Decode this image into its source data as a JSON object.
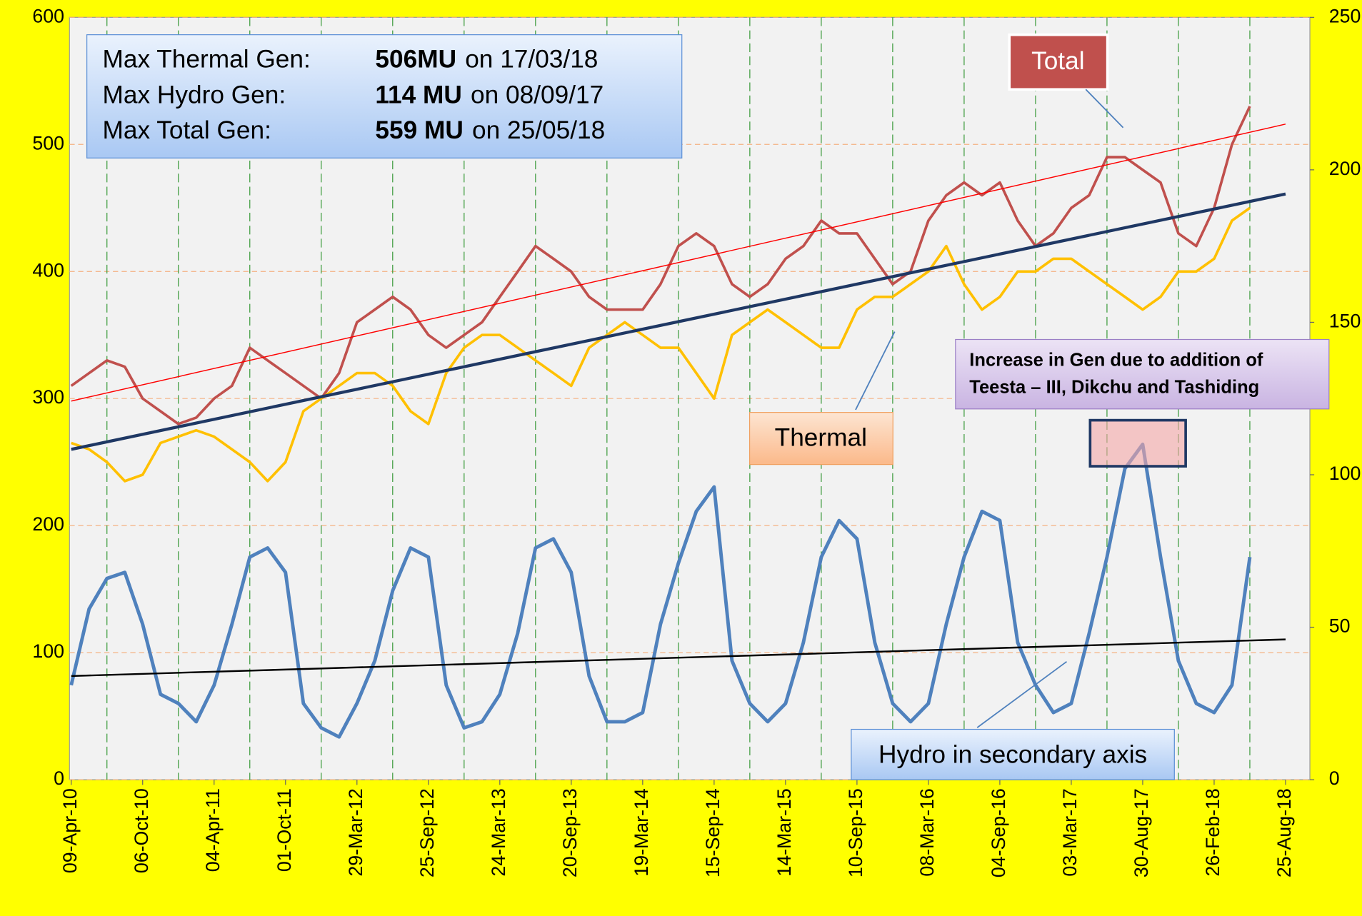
{
  "chart_data": {
    "type": "line",
    "categories": [
      "09-Apr-10",
      null,
      null,
      null,
      "06-Oct-10",
      null,
      null,
      null,
      "04-Apr-11",
      null,
      null,
      null,
      "01-Oct-11",
      null,
      null,
      null,
      "29-Mar-12",
      null,
      null,
      null,
      "25-Sep-12",
      null,
      null,
      null,
      "24-Mar-13",
      null,
      null,
      null,
      "20-Sep-13",
      null,
      null,
      null,
      "19-Mar-14",
      null,
      null,
      null,
      "15-Sep-14",
      null,
      null,
      null,
      "14-Mar-15",
      null,
      null,
      null,
      "10-Sep-15",
      null,
      null,
      null,
      "08-Mar-16",
      null,
      null,
      null,
      "04-Sep-16",
      null,
      null,
      null,
      "03-Mar-17",
      null,
      null,
      null,
      "30-Aug-17",
      null,
      null,
      null,
      "26-Feb-18",
      null,
      null,
      null,
      "25-Aug-18"
    ],
    "series": [
      {
        "name": "Total",
        "color": "#c0504d",
        "values": [
          310,
          320,
          330,
          325,
          300,
          290,
          280,
          285,
          300,
          310,
          340,
          330,
          320,
          310,
          300,
          320,
          360,
          370,
          380,
          370,
          350,
          340,
          350,
          360,
          380,
          400,
          420,
          410,
          400,
          380,
          370,
          370,
          370,
          390,
          420,
          430,
          420,
          390,
          380,
          390,
          410,
          420,
          440,
          430,
          430,
          410,
          390,
          400,
          440,
          460,
          470,
          460,
          470,
          440,
          420,
          430,
          450,
          460,
          490,
          490,
          480,
          470,
          430,
          420,
          450,
          500,
          530,
          null,
          null
        ]
      },
      {
        "name": "Thermal",
        "color": "#ffc000",
        "values": [
          265,
          260,
          250,
          235,
          240,
          265,
          270,
          275,
          270,
          260,
          250,
          235,
          250,
          290,
          300,
          310,
          320,
          320,
          310,
          290,
          280,
          320,
          340,
          350,
          350,
          340,
          330,
          320,
          310,
          340,
          350,
          360,
          350,
          340,
          340,
          320,
          300,
          350,
          360,
          370,
          360,
          350,
          340,
          340,
          370,
          380,
          380,
          390,
          400,
          420,
          390,
          370,
          380,
          400,
          400,
          410,
          410,
          400,
          390,
          380,
          370,
          380,
          400,
          400,
          410,
          440,
          450,
          null,
          null
        ]
      },
      {
        "name": "Hydro in secondary axis",
        "color": "#4f81bd",
        "axis": "y2",
        "values": [
          31,
          56,
          66,
          68,
          51,
          28,
          25,
          19,
          31,
          51,
          73,
          76,
          68,
          25,
          17,
          14,
          25,
          39,
          62,
          76,
          73,
          31,
          17,
          19,
          28,
          48,
          76,
          79,
          68,
          34,
          19,
          19,
          22,
          51,
          71,
          88,
          96,
          39,
          25,
          19,
          25,
          45,
          73,
          85,
          79,
          45,
          25,
          19,
          25,
          51,
          73,
          88,
          85,
          45,
          31,
          22,
          25,
          48,
          73,
          102,
          110,
          73,
          39,
          25,
          22,
          31,
          73,
          null,
          null
        ]
      }
    ],
    "trendlines": [
      {
        "series": 0,
        "color": "#ff0000",
        "start": 298,
        "end": 516
      },
      {
        "series": 1,
        "color": "#1f3864",
        "start": 260,
        "end": 461
      },
      {
        "series": 2,
        "color": "#000000",
        "start": 34,
        "end": 46
      }
    ],
    "ylim": [
      0,
      600
    ],
    "yticks": [
      0,
      100,
      200,
      300,
      400,
      500,
      600
    ],
    "y2lim": [
      0,
      250
    ],
    "y2ticks": [
      0,
      50,
      100,
      150,
      200,
      250
    ],
    "grid": true,
    "info_box": [
      {
        "label": "Max Thermal Gen:",
        "value": "506MU",
        "date": "on 17/03/18"
      },
      {
        "label": "Max Hydro Gen:",
        "value": "114 MU",
        "date": "on 08/09/17"
      },
      {
        "label": "Max Total Gen:",
        "value": "559 MU",
        "date": "on 25/05/18"
      }
    ],
    "annotations": [
      "Total",
      "Thermal",
      "Hydro in secondary axis",
      "Increase in Gen due to addition of",
      "Teesta – III, Dikchu and Tashiding"
    ]
  }
}
